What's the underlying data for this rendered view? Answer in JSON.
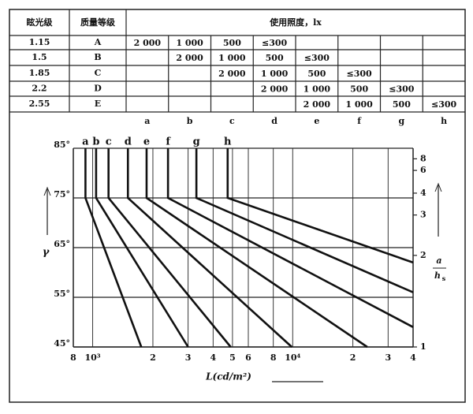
{
  "table": {
    "headers": [
      "眩光级",
      "质量等级",
      "使用照度，lx"
    ],
    "columns": [
      "a",
      "b",
      "c",
      "d",
      "e",
      "f",
      "g",
      "h"
    ],
    "rows": [
      {
        "glare": "1.15",
        "grade": "A",
        "cells": [
          "2 000",
          "1 000",
          "500",
          "≤300",
          null,
          null,
          null,
          null
        ]
      },
      {
        "glare": "1.5",
        "grade": "B",
        "cells": [
          null,
          "2 000",
          "1 000",
          "500",
          "≤300",
          null,
          null,
          null
        ]
      },
      {
        "glare": "1.85",
        "grade": "C",
        "cells": [
          null,
          null,
          "2 000",
          "1 000",
          "500",
          "≤300",
          null,
          null
        ]
      },
      {
        "glare": "2.2",
        "grade": "D",
        "cells": [
          null,
          null,
          null,
          "2 000",
          "1 000",
          "500",
          "≤300",
          null
        ]
      },
      {
        "glare": "2.55",
        "grade": "E",
        "cells": [
          null,
          null,
          null,
          null,
          "2 000",
          "1 000",
          "500",
          "≤300"
        ]
      }
    ]
  },
  "chart_data": {
    "type": "line",
    "x_label": "L(cd/m²)",
    "y_label": "γ",
    "y2_label": {
      "numerator": "a",
      "denominator": "h",
      "subscript": "s"
    },
    "xscale": "log",
    "xlim": [
      800,
      40000
    ],
    "xticks": [
      {
        "value": 800,
        "label": "8"
      },
      {
        "value": 1000,
        "label": "10³"
      },
      {
        "value": 2000,
        "label": "2"
      },
      {
        "value": 3000,
        "label": "3"
      },
      {
        "value": 4000,
        "label": "4"
      },
      {
        "value": 5000,
        "label": "5"
      },
      {
        "value": 6000,
        "label": "6"
      },
      {
        "value": 8000,
        "label": "8"
      },
      {
        "value": 10000,
        "label": "10⁴"
      },
      {
        "value": 20000,
        "label": "2"
      },
      {
        "value": 30000,
        "label": "3"
      },
      {
        "value": 40000,
        "label": "4"
      }
    ],
    "ylim": [
      45,
      85
    ],
    "yticks": [
      {
        "value": 45,
        "label": "45°"
      },
      {
        "value": 55,
        "label": "55°"
      },
      {
        "value": 65,
        "label": "65°"
      },
      {
        "value": 75,
        "label": "75°"
      },
      {
        "value": 85,
        "label": "85°"
      }
    ],
    "y2scale": "tan",
    "y2ticks": [
      1,
      2,
      3,
      4,
      6,
      8
    ],
    "grid": true,
    "color": "#111111",
    "series": [
      {
        "name": "a",
        "x": [
          920,
          920,
          1750
        ],
        "values": [
          85,
          75,
          45
        ]
      },
      {
        "name": "b",
        "x": [
          1040,
          1040,
          3000
        ],
        "values": [
          85,
          75,
          45
        ]
      },
      {
        "name": "c",
        "x": [
          1200,
          1200,
          4900
        ],
        "values": [
          85,
          75,
          45
        ]
      },
      {
        "name": "d",
        "x": [
          1500,
          1500,
          9900
        ],
        "values": [
          85,
          75,
          45
        ]
      },
      {
        "name": "e",
        "x": [
          1860,
          1860,
          23600
        ],
        "values": [
          85,
          75,
          45
        ]
      },
      {
        "name": "f",
        "x": [
          2380,
          2380,
          40000
        ],
        "values": [
          85,
          75,
          49
        ]
      },
      {
        "name": "g",
        "x": [
          3300,
          3300,
          40000
        ],
        "values": [
          85,
          75,
          56
        ]
      },
      {
        "name": "h",
        "x": [
          4730,
          4730,
          40000
        ],
        "values": [
          85,
          75,
          62
        ]
      }
    ]
  }
}
